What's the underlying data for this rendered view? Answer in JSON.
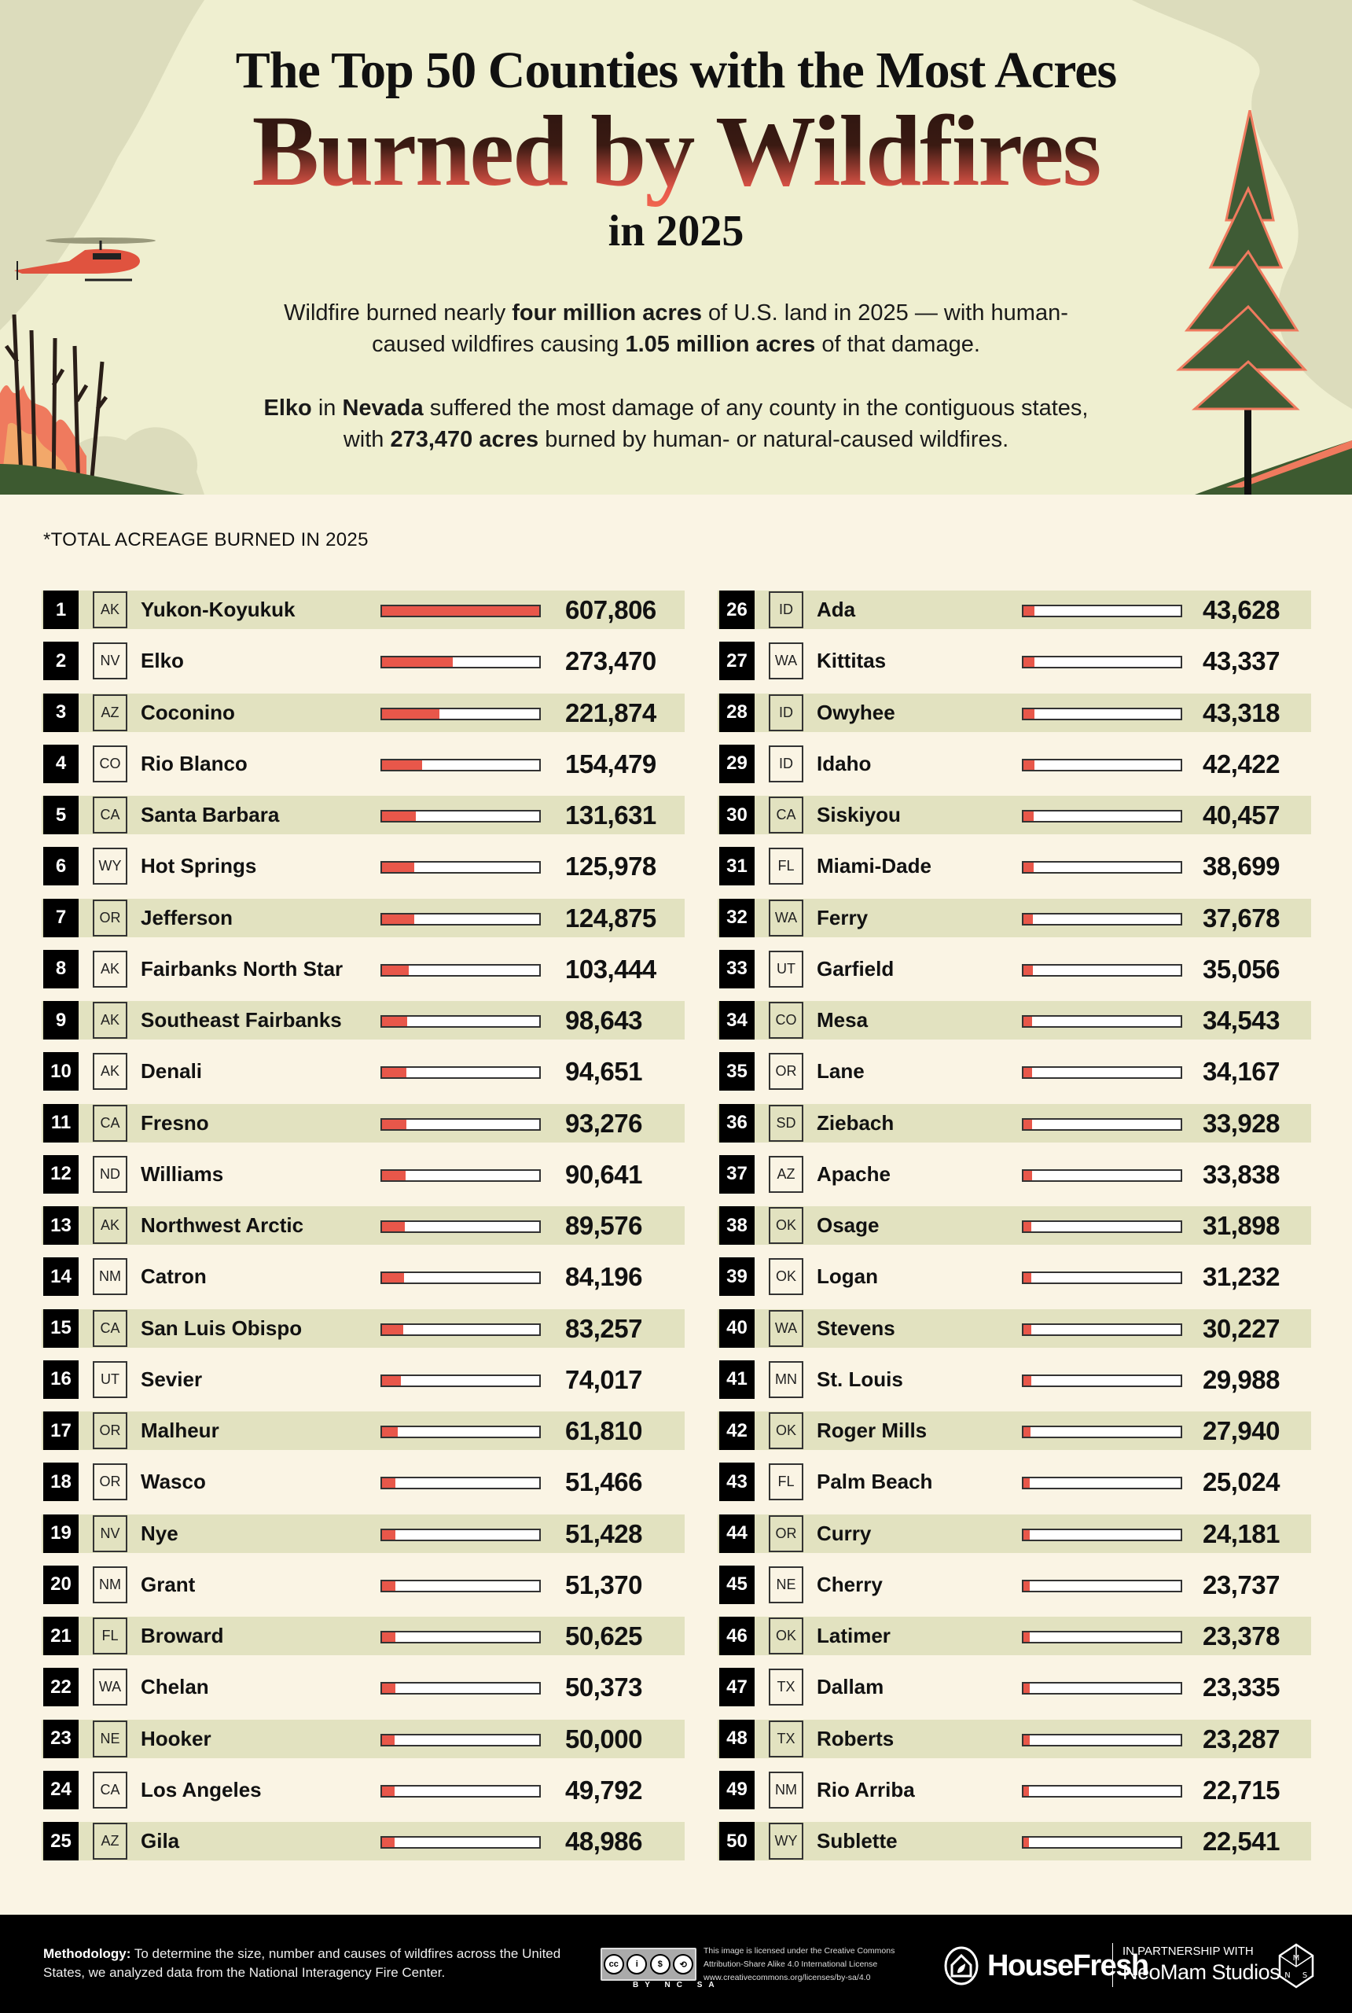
{
  "header": {
    "title_line1": "The Top 50 Counties with the Most Acres",
    "title_line2": "Burned by Wildfires",
    "title_line3": "in 2025",
    "para1": {
      "t1": "Wildfire burned nearly ",
      "b1": "four million acres",
      "t2": " of U.S. land in 2025 — with human-caused wildfires causing ",
      "b2": "1.05 million acres",
      "t3": " of that damage."
    },
    "para2": {
      "b1": "Elko",
      "t1": " in ",
      "b2": "Nevada",
      "t2": " suffered the most damage of any county in the contiguous states, with ",
      "b3": "273,470 acres",
      "t3": " burned by human- or natural-caused wildfires."
    }
  },
  "colors": {
    "bar_fill": "#e8574a",
    "bar_empty": "#ffffff",
    "band": "#e2e2c0",
    "header_bg": "#efefd0",
    "page_bg": "#faf4e4"
  },
  "chart_data": {
    "type": "bar",
    "orientation": "horizontal",
    "title": "The Top 50 Counties with the Most Acres Burned by Wildfires in 2025",
    "xlabel": "*TOTAL ACREAGE BURNED IN 2025",
    "xlim": [
      0,
      607806
    ],
    "rows": [
      {
        "rank": "1",
        "state": "AK",
        "county": "Yukon-Koyukuk",
        "value": 607806,
        "label": "607,806"
      },
      {
        "rank": "2",
        "state": "NV",
        "county": "Elko",
        "value": 273470,
        "label": "273,470"
      },
      {
        "rank": "3",
        "state": "AZ",
        "county": "Coconino",
        "value": 221874,
        "label": "221,874"
      },
      {
        "rank": "4",
        "state": "CO",
        "county": "Rio Blanco",
        "value": 154479,
        "label": "154,479"
      },
      {
        "rank": "5",
        "state": "CA",
        "county": "Santa Barbara",
        "value": 131631,
        "label": "131,631"
      },
      {
        "rank": "6",
        "state": "WY",
        "county": "Hot Springs",
        "value": 125978,
        "label": "125,978"
      },
      {
        "rank": "7",
        "state": "OR",
        "county": "Jefferson",
        "value": 124875,
        "label": "124,875"
      },
      {
        "rank": "8",
        "state": "AK",
        "county": "Fairbanks North Star",
        "value": 103444,
        "label": "103,444"
      },
      {
        "rank": "9",
        "state": "AK",
        "county": "Southeast Fairbanks",
        "value": 98643,
        "label": "98,643"
      },
      {
        "rank": "10",
        "state": "AK",
        "county": "Denali",
        "value": 94651,
        "label": "94,651"
      },
      {
        "rank": "11",
        "state": "CA",
        "county": "Fresno",
        "value": 93276,
        "label": "93,276"
      },
      {
        "rank": "12",
        "state": "ND",
        "county": "Williams",
        "value": 90641,
        "label": "90,641"
      },
      {
        "rank": "13",
        "state": "AK",
        "county": "Northwest Arctic",
        "value": 89576,
        "label": "89,576"
      },
      {
        "rank": "14",
        "state": "NM",
        "county": "Catron",
        "value": 84196,
        "label": "84,196"
      },
      {
        "rank": "15",
        "state": "CA",
        "county": "San Luis Obispo",
        "value": 83257,
        "label": "83,257"
      },
      {
        "rank": "16",
        "state": "UT",
        "county": "Sevier",
        "value": 74017,
        "label": "74,017"
      },
      {
        "rank": "17",
        "state": "OR",
        "county": "Malheur",
        "value": 61810,
        "label": "61,810"
      },
      {
        "rank": "18",
        "state": "OR",
        "county": "Wasco",
        "value": 51466,
        "label": "51,466"
      },
      {
        "rank": "19",
        "state": "NV",
        "county": "Nye",
        "value": 51428,
        "label": "51,428"
      },
      {
        "rank": "20",
        "state": "NM",
        "county": "Grant",
        "value": 51370,
        "label": "51,370"
      },
      {
        "rank": "21",
        "state": "FL",
        "county": "Broward",
        "value": 50625,
        "label": "50,625"
      },
      {
        "rank": "22",
        "state": "WA",
        "county": "Chelan",
        "value": 50373,
        "label": "50,373"
      },
      {
        "rank": "23",
        "state": "NE",
        "county": "Hooker",
        "value": 50000,
        "label": "50,000"
      },
      {
        "rank": "24",
        "state": "CA",
        "county": "Los Angeles",
        "value": 49792,
        "label": "49,792"
      },
      {
        "rank": "25",
        "state": "AZ",
        "county": "Gila",
        "value": 48986,
        "label": "48,986"
      },
      {
        "rank": "26",
        "state": "ID",
        "county": "Ada",
        "value": 43628,
        "label": "43,628"
      },
      {
        "rank": "27",
        "state": "WA",
        "county": "Kittitas",
        "value": 43337,
        "label": "43,337"
      },
      {
        "rank": "28",
        "state": "ID",
        "county": "Owyhee",
        "value": 43318,
        "label": "43,318"
      },
      {
        "rank": "29",
        "state": "ID",
        "county": "Idaho",
        "value": 42422,
        "label": "42,422"
      },
      {
        "rank": "30",
        "state": "CA",
        "county": "Siskiyou",
        "value": 40457,
        "label": "40,457"
      },
      {
        "rank": "31",
        "state": "FL",
        "county": "Miami-Dade",
        "value": 38699,
        "label": "38,699"
      },
      {
        "rank": "32",
        "state": "WA",
        "county": "Ferry",
        "value": 37678,
        "label": "37,678"
      },
      {
        "rank": "33",
        "state": "UT",
        "county": "Garfield",
        "value": 35056,
        "label": "35,056"
      },
      {
        "rank": "34",
        "state": "CO",
        "county": "Mesa",
        "value": 34543,
        "label": "34,543"
      },
      {
        "rank": "35",
        "state": "OR",
        "county": "Lane",
        "value": 34167,
        "label": "34,167"
      },
      {
        "rank": "36",
        "state": "SD",
        "county": "Ziebach",
        "value": 33928,
        "label": "33,928"
      },
      {
        "rank": "37",
        "state": "AZ",
        "county": "Apache",
        "value": 33838,
        "label": "33,838"
      },
      {
        "rank": "38",
        "state": "OK",
        "county": "Osage",
        "value": 31898,
        "label": "31,898"
      },
      {
        "rank": "39",
        "state": "OK",
        "county": "Logan",
        "value": 31232,
        "label": "31,232"
      },
      {
        "rank": "40",
        "state": "WA",
        "county": "Stevens",
        "value": 30227,
        "label": "30,227"
      },
      {
        "rank": "41",
        "state": "MN",
        "county": "St. Louis",
        "value": 29988,
        "label": "29,988"
      },
      {
        "rank": "42",
        "state": "OK",
        "county": "Roger Mills",
        "value": 27940,
        "label": "27,940"
      },
      {
        "rank": "43",
        "state": "FL",
        "county": "Palm Beach",
        "value": 25024,
        "label": "25,024"
      },
      {
        "rank": "44",
        "state": "OR",
        "county": "Curry",
        "value": 24181,
        "label": "24,181"
      },
      {
        "rank": "45",
        "state": "NE",
        "county": "Cherry",
        "value": 23737,
        "label": "23,737"
      },
      {
        "rank": "46",
        "state": "OK",
        "county": "Latimer",
        "value": 23378,
        "label": "23,378"
      },
      {
        "rank": "47",
        "state": "TX",
        "county": "Dallam",
        "value": 23335,
        "label": "23,335"
      },
      {
        "rank": "48",
        "state": "TX",
        "county": "Roberts",
        "value": 23287,
        "label": "23,287"
      },
      {
        "rank": "49",
        "state": "NM",
        "county": "Rio Arriba",
        "value": 22715,
        "label": "22,715"
      },
      {
        "rank": "50",
        "state": "WY",
        "county": "Sublette",
        "value": 22541,
        "label": "22,541"
      }
    ]
  },
  "footer": {
    "methodology_label": "Methodology:",
    "methodology_text": " To determine the size, number and causes of wildfires across the United States, we analyzed data from the National Interagency Fire Center.",
    "cc_badges": [
      "cc",
      "i",
      "$",
      "⟲"
    ],
    "cc_sub": "BY NC SA",
    "license_lines": [
      "This image is licensed under the Creative Commons",
      "Attribution-Share Alike 4.0 International License",
      "www.creativecommons.org/licenses/by-sa/4.0"
    ],
    "brand": "HouseFresh",
    "partner_label": "IN PARTNERSHIP WITH",
    "partner_name": "NeoMam Studios"
  }
}
